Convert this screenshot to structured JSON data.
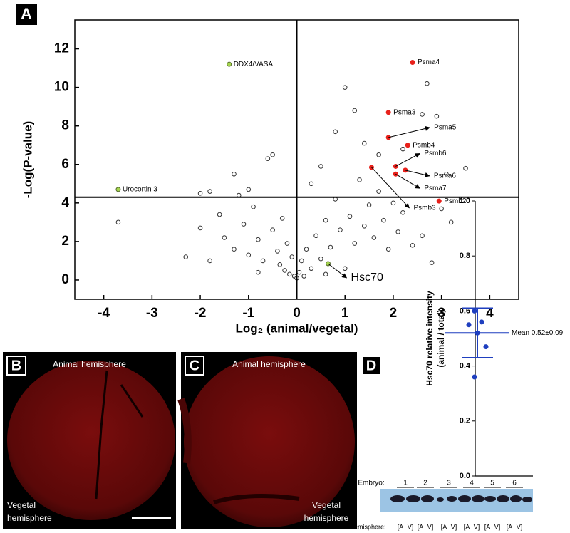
{
  "chart_data": [
    {
      "type": "scatter",
      "panel": "A",
      "x_label": "Log₂ (animal/vegetal)",
      "y_label": "-Log(P-value)",
      "xlim": [
        -4.6,
        4.6
      ],
      "ylim": [
        -1,
        13.5
      ],
      "xticks": [
        -4,
        -3,
        -2,
        -1,
        0,
        1,
        2,
        3,
        4
      ],
      "yticks": [
        0,
        2,
        4,
        6,
        8,
        10,
        12
      ],
      "threshold_x": 0,
      "threshold_y": 4.3,
      "series": [
        {
          "color": "#ffffff",
          "edge": "#333333",
          "x": [
            -3.7,
            -2.3,
            -2,
            -1.8,
            -1.6,
            -1.5,
            -1.3,
            -1.2,
            -1.1,
            -1,
            -0.9,
            -0.8,
            -0.7,
            -0.6,
            -0.5,
            -0.4,
            -0.35,
            -0.3,
            -0.25,
            -0.2,
            -0.15,
            -0.1,
            -0.05,
            0,
            0.05,
            0.1,
            0.15,
            0.2,
            0.3,
            0.4,
            0.5,
            0.6,
            0.7,
            0.8,
            0.9,
            1,
            1.1,
            1.2,
            1.3,
            1.4,
            1.5,
            1.6,
            1.7,
            1.8,
            1.9,
            2,
            2.1,
            2.2,
            2.4,
            2.6,
            2.8,
            3,
            3.2,
            3.5,
            -1.3,
            -0.5,
            -1.0,
            0.8,
            1.2,
            1.7,
            2.6,
            2.7,
            -2.0,
            -1.8,
            0.3,
            0.5,
            1.4,
            2.2,
            2.9,
            3.1,
            -0.8,
            0.6,
            1.0
          ],
          "y": [
            3.0,
            1.2,
            2.7,
            1.0,
            3.4,
            2.2,
            1.6,
            4.4,
            2.9,
            1.3,
            3.8,
            2.1,
            1.0,
            6.3,
            2.6,
            1.5,
            0.8,
            3.2,
            0.5,
            1.9,
            0.3,
            1.2,
            0.2,
            0.1,
            0.4,
            1.0,
            0.2,
            1.6,
            0.6,
            2.3,
            1.1,
            3.1,
            1.7,
            4.2,
            2.6,
            10.0,
            3.3,
            1.9,
            5.2,
            2.8,
            3.9,
            2.2,
            4.6,
            3.1,
            1.6,
            4.0,
            2.5,
            3.5,
            1.8,
            2.3,
            0.9,
            3.7,
            3.0,
            5.8,
            5.5,
            6.5,
            4.7,
            7.7,
            8.8,
            6.5,
            8.6,
            10.2,
            4.5,
            4.6,
            5.0,
            5.9,
            7.1,
            6.8,
            8.5,
            5.5,
            0.4,
            0.3,
            0.6
          ]
        },
        {
          "color": "#e8211b",
          "edge": "#e8211b",
          "x": [
            2.4,
            1.9,
            1.9,
            2.3,
            2.05,
            2.25,
            2.05,
            1.55,
            2.95
          ],
          "y": [
            11.3,
            8.7,
            7.4,
            7.0,
            5.9,
            5.7,
            5.5,
            5.85,
            4.1
          ],
          "labels": [
            "Psma4",
            "Psma3",
            "Psma5",
            "Psmb4",
            "Psmb6",
            "Psma6",
            "Psma7",
            "Psmb3",
            "Psmb2"
          ]
        },
        {
          "color": "#a6d64f",
          "edge": "#556b2f",
          "x": [
            -1.4,
            -3.7,
            0.65
          ],
          "y": [
            11.2,
            4.7,
            0.85
          ],
          "labels": [
            "DDX4/VASA",
            "Urocortin 3",
            "Hsc70"
          ]
        }
      ]
    },
    {
      "type": "dot",
      "panel": "D",
      "y_label": [
        "Hsc70 relative intensity",
        "(animal / total)"
      ],
      "ylim": [
        0,
        1.0
      ],
      "yticks": [
        {
          "value": 0,
          "label": "0.0"
        },
        0.2,
        0.4,
        0.6,
        0.8,
        {
          "value": 1,
          "label": "1.0"
        }
      ],
      "color": "#1f3fbf",
      "values": [
        0.6,
        0.56,
        0.55,
        0.52,
        0.47,
        0.36
      ],
      "mean": 0.52,
      "sd": 0.09,
      "annotation": "Mean 0.52±0.09"
    }
  ],
  "panel_b": {
    "label": "B",
    "top": "Animal hemisphere",
    "bottom": [
      "Vegetal",
      "hemisphere"
    ]
  },
  "panel_c": {
    "label": "C",
    "top": "Animal hemisphere",
    "bottom": [
      "Vegetal",
      "hemisphere"
    ]
  },
  "blot": {
    "embryo_label": "Embryo:",
    "embryos": [
      "1",
      "2",
      "3",
      "4",
      "5",
      "6"
    ],
    "hemisphere_label": "Hemisphere:",
    "hemispheres": [
      "[A",
      "V]"
    ]
  }
}
